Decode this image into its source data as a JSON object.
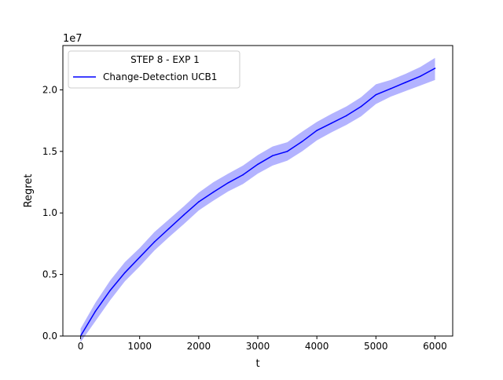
{
  "chart_data": {
    "type": "line",
    "title": "",
    "xlabel": "t",
    "ylabel": "Regret",
    "y_offset_label": "1e7",
    "y_scale_factor": 10000000,
    "xlim": [
      -300,
      6300
    ],
    "ylim": [
      0,
      23600000
    ],
    "x_ticks": [
      0,
      1000,
      2000,
      3000,
      4000,
      5000,
      6000
    ],
    "x_tick_labels": [
      "0",
      "1000",
      "2000",
      "3000",
      "4000",
      "5000",
      "6000"
    ],
    "y_ticks": [
      0,
      5000000,
      10000000,
      15000000,
      20000000
    ],
    "y_tick_labels": [
      "0.0",
      "0.5",
      "1.0",
      "1.5",
      "2.0"
    ],
    "grid": false,
    "legend": {
      "title": "STEP 8 - EXP 1",
      "placement": "upper-left",
      "entries": [
        "Change-Detection UCB1"
      ]
    },
    "series": [
      {
        "name": "Change-Detection UCB1",
        "color": "#0000ff",
        "band_color": "#b3b3ff",
        "x": [
          0,
          250,
          500,
          750,
          1000,
          1250,
          1500,
          1750,
          2000,
          2250,
          2500,
          2750,
          3000,
          3250,
          3500,
          3750,
          4000,
          4250,
          4500,
          4750,
          5000,
          5250,
          5500,
          5750,
          6000
        ],
        "values": [
          0,
          2000000,
          3700000,
          5150000,
          6400000,
          7650000,
          8750000,
          9850000,
          10900000,
          11700000,
          12450000,
          13100000,
          13950000,
          14650000,
          15000000,
          15800000,
          16700000,
          17300000,
          17900000,
          18650000,
          19600000,
          20100000,
          20600000,
          21100000,
          21750000
        ],
        "lower": [
          -500000,
          1200000,
          2900000,
          4450000,
          5650000,
          6950000,
          8050000,
          9100000,
          10200000,
          11000000,
          11750000,
          12350000,
          13200000,
          13850000,
          14250000,
          15000000,
          15900000,
          16550000,
          17150000,
          17850000,
          18850000,
          19450000,
          19900000,
          20350000,
          20800000
        ],
        "upper": [
          600000,
          2700000,
          4500000,
          6000000,
          7150000,
          8450000,
          9500000,
          10550000,
          11650000,
          12500000,
          13200000,
          13850000,
          14700000,
          15400000,
          15750000,
          16600000,
          17400000,
          18050000,
          18650000,
          19400000,
          20450000,
          20800000,
          21300000,
          21850000,
          22600000
        ]
      }
    ]
  }
}
